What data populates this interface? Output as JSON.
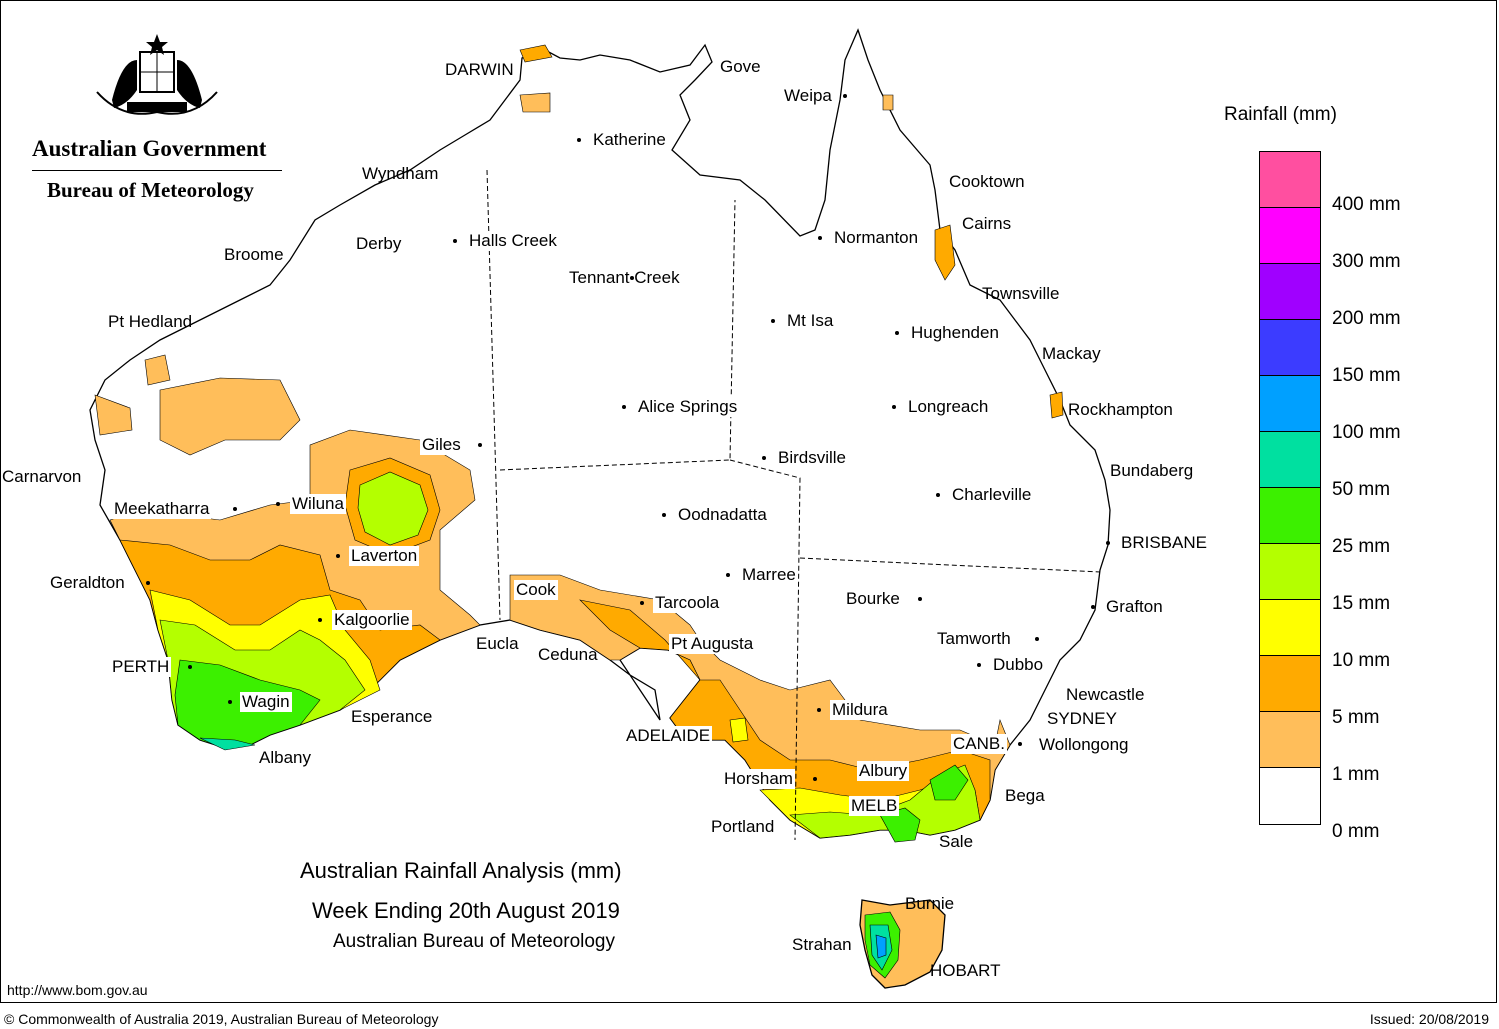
{
  "header": {
    "government": "Australian Government",
    "agency": "Bureau of Meteorology"
  },
  "title": {
    "line1": "Australian Rainfall Analysis (mm)",
    "line2": "Week Ending 20th August 2019",
    "line3": "Australian Bureau of Meteorology"
  },
  "legend": {
    "title": "Rainfall (mm)",
    "items": [
      {
        "label": "400 mm",
        "color": "#ff4fa0"
      },
      {
        "label": "300 mm",
        "color": "#ff00ff"
      },
      {
        "label": "200 mm",
        "color": "#a000ff"
      },
      {
        "label": "150 mm",
        "color": "#3c3cff"
      },
      {
        "label": "100 mm",
        "color": "#00a0ff"
      },
      {
        "label": "50 mm",
        "color": "#00e0a0"
      },
      {
        "label": "25 mm",
        "color": "#3cf000"
      },
      {
        "label": "15 mm",
        "color": "#b4ff00"
      },
      {
        "label": "10 mm",
        "color": "#ffff00"
      },
      {
        "label": "5 mm",
        "color": "#ffaa00"
      },
      {
        "label": "1 mm",
        "color": "#ffbe5a"
      },
      {
        "label": "0 mm",
        "color": "#ffffff"
      }
    ]
  },
  "places": [
    {
      "name": "DARWIN"
    },
    {
      "name": "Gove"
    },
    {
      "name": "Weipa"
    },
    {
      "name": "Katherine"
    },
    {
      "name": "Wyndham"
    },
    {
      "name": "Cooktown"
    },
    {
      "name": "Cairns"
    },
    {
      "name": "Derby"
    },
    {
      "name": "Halls Creek"
    },
    {
      "name": "Normanton"
    },
    {
      "name": "Broome"
    },
    {
      "name": "Tennant Creek"
    },
    {
      "name": "Townsville"
    },
    {
      "name": "Pt Hedland"
    },
    {
      "name": "Mt Isa"
    },
    {
      "name": "Hughenden"
    },
    {
      "name": "Mackay"
    },
    {
      "name": "Alice Springs"
    },
    {
      "name": "Longreach"
    },
    {
      "name": "Rockhampton"
    },
    {
      "name": "Giles"
    },
    {
      "name": "Birdsville"
    },
    {
      "name": "Bundaberg"
    },
    {
      "name": "Carnarvon"
    },
    {
      "name": "Charleville"
    },
    {
      "name": "Meekatharra"
    },
    {
      "name": "Wiluna"
    },
    {
      "name": "Oodnadatta"
    },
    {
      "name": "BRISBANE"
    },
    {
      "name": "Laverton"
    },
    {
      "name": "Marree"
    },
    {
      "name": "Geraldton"
    },
    {
      "name": "Cook"
    },
    {
      "name": "Bourke"
    },
    {
      "name": "Tarcoola"
    },
    {
      "name": "Grafton"
    },
    {
      "name": "Kalgoorlie"
    },
    {
      "name": "Tamworth"
    },
    {
      "name": "Eucla"
    },
    {
      "name": "Pt Augusta"
    },
    {
      "name": "Ceduna"
    },
    {
      "name": "Dubbo"
    },
    {
      "name": "PERTH"
    },
    {
      "name": "Newcastle"
    },
    {
      "name": "Wagin"
    },
    {
      "name": "Mildura"
    },
    {
      "name": "SYDNEY"
    },
    {
      "name": "Esperance"
    },
    {
      "name": "ADELAIDE"
    },
    {
      "name": "CANB."
    },
    {
      "name": "Wollongong"
    },
    {
      "name": "Albany"
    },
    {
      "name": "Albury"
    },
    {
      "name": "Horsham"
    },
    {
      "name": "Bega"
    },
    {
      "name": "MELB"
    },
    {
      "name": "Portland"
    },
    {
      "name": "Sale"
    },
    {
      "name": "Burnie"
    },
    {
      "name": "Strahan"
    },
    {
      "name": "HOBART"
    }
  ],
  "footer": {
    "url": "http://www.bom.gov.au",
    "copyright": "© Commonwealth of Australia 2019, Australian Bureau of Meteorology",
    "issued": "Issued: 20/08/2019"
  }
}
